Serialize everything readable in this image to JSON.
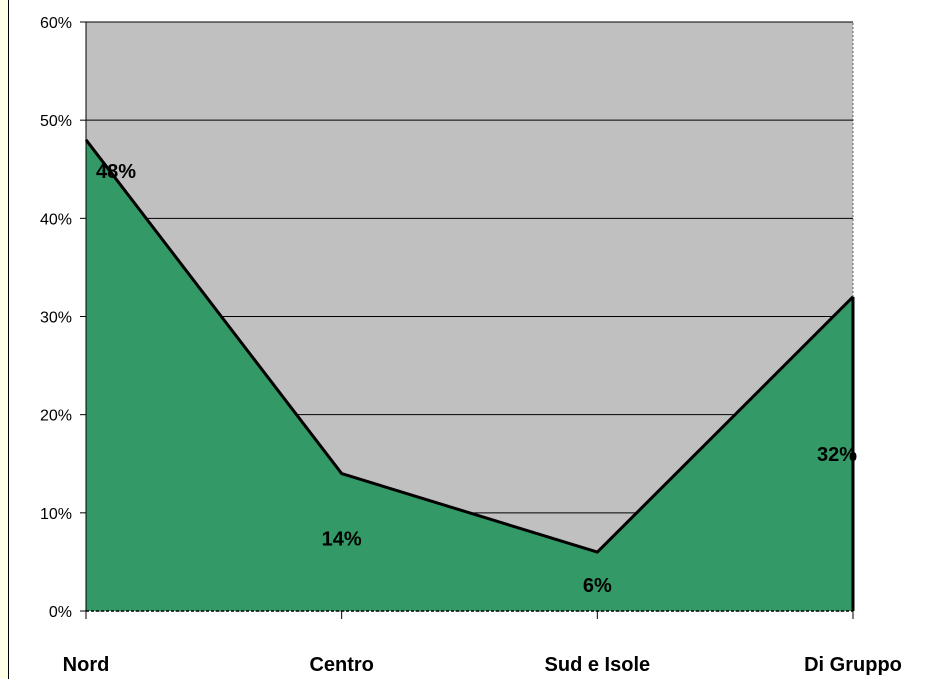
{
  "chart_data": {
    "type": "area",
    "categories": [
      "Nord",
      "Centro",
      "Sud e Isole",
      "Di Gruppo"
    ],
    "values": [
      48,
      14,
      6,
      32
    ],
    "data_labels": [
      "48%",
      "14%",
      "6%",
      "32%"
    ],
    "ylim": [
      0,
      60
    ],
    "yticks": [
      0,
      10,
      20,
      30,
      40,
      50,
      60
    ],
    "ytick_labels": [
      "0%",
      "10%",
      "20%",
      "30%",
      "40%",
      "50%",
      "60%"
    ],
    "grid": true,
    "legend": "none",
    "title": "",
    "xlabel": "",
    "ylabel": ""
  },
  "colors": {
    "plot_background": "#c0c0c0",
    "area_fill": "#339966",
    "line": "#000000",
    "gridline": "#000000"
  }
}
